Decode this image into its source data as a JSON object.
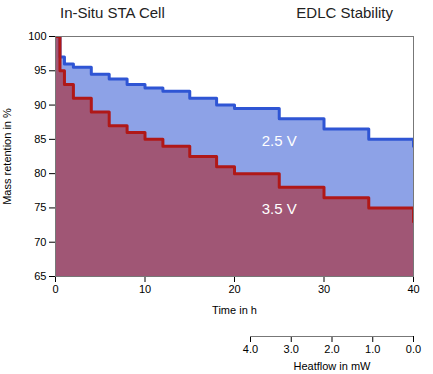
{
  "chart_data": {
    "type": "area",
    "title": "EDLC Stability",
    "annotations": [
      "In-Situ STA Cell"
    ],
    "x_label": "Time in h",
    "y_label": "Mass retention in %",
    "xlim": [
      0,
      40
    ],
    "xticks": [
      0,
      10,
      20,
      30,
      40
    ],
    "ylim": [
      65,
      100
    ],
    "yticks": [
      65,
      70,
      75,
      80,
      85,
      90,
      95,
      100
    ],
    "x": [
      0,
      0.5,
      1,
      2,
      4,
      6,
      8,
      10,
      12,
      15,
      18,
      20,
      25,
      30,
      35,
      40
    ],
    "series": [
      {
        "name": "2.5 V",
        "color": "#2f55d4",
        "values": [
          100,
          97,
          96,
          95.5,
          94.5,
          93.8,
          93,
          92.5,
          92,
          91,
          90,
          89.5,
          88,
          86.5,
          85,
          84
        ]
      },
      {
        "name": "3.5 V",
        "color": "#b01818",
        "values": [
          100,
          95,
          93,
          91,
          89,
          87,
          86,
          85,
          84,
          82.5,
          81,
          80,
          78,
          76.5,
          75,
          73
        ]
      }
    ],
    "heatflow_axis": {
      "label": "Heatflow in mW",
      "lim": [
        4,
        0
      ],
      "ticks": [
        4,
        3,
        2,
        1,
        0
      ]
    }
  }
}
